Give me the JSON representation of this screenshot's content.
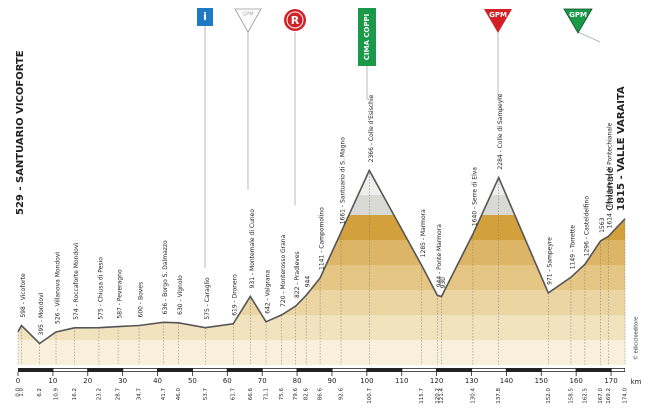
{
  "chart_data": {
    "type": "area",
    "x": [
      0,
      1.0,
      6.2,
      10.9,
      16.2,
      23.2,
      28.7,
      34.7,
      41.7,
      46.0,
      53.7,
      61.7,
      66.6,
      71.1,
      75.6,
      79.6,
      82.6,
      86.6,
      92.6,
      100.7,
      115.7,
      120.2,
      121.4,
      130.4,
      137.8,
      152.0,
      158.5,
      162.5,
      167.0,
      169.2,
      174.0
    ],
    "x_labels": [
      "0.0",
      "1.0",
      "6.2",
      "10.9",
      "16.2",
      "23.2",
      "28.7",
      "34.7",
      "41.7",
      "46.0",
      "53.7",
      "61.7",
      "66.6",
      "71.1",
      "75.6",
      "79.6",
      "82.6",
      "86.6",
      "92.6",
      "100.7",
      "115.7",
      "120.2",
      "121.4",
      "130.4",
      "137.8",
      "152.0",
      "158.5",
      "162.5",
      "167.0",
      "169.2",
      "174.0"
    ],
    "values": [
      529,
      598,
      395,
      526,
      574,
      575,
      587,
      600,
      636,
      630,
      575,
      619,
      931,
      642,
      720,
      822,
      944,
      1141,
      1661,
      2366,
      1285,
      944,
      930,
      1640,
      2284,
      971,
      1149,
      1296,
      1563,
      1614,
      1815
    ],
    "value_labels": [
      "529 - SANTUARIO VICOFORTE",
      "598 - Vicoforte",
      "395 - Mondovì",
      "526 - Villanova Mondovì",
      "574 - Roccaforte Mondovì",
      "575 - Chiusa di Pesio",
      "587 - Peveragno",
      "600 - Boves",
      "636 - Borgo S. Dalmazzo",
      "630 - Vignolo",
      "575 - Caraglio",
      "619 - Dronero",
      "931 - Montemale di Cuneo",
      "642 - Valgrana",
      "720 - Monterosso Grana",
      "822 - Pradleves",
      "944",
      "1141 - Campomolino",
      "1661 - Santuario di S. Magno",
      "2366 - Colle d'Esischie",
      "1285 - Marmora",
      "944 - Ponte Marmora",
      "930",
      "1640 - Serre di Elva",
      "2284 - Colle di Sampeyre",
      "971 - Sampeyre",
      "1149 - Torrette",
      "1296 - Casteldelfino",
      "1563",
      "1614 - Maddalena di Pontechianale",
      "1815 - VALLE VARAITA"
    ],
    "finish_town": "Chianale",
    "color": "#555555",
    "xlim": [
      0,
      174
    ],
    "xticks": [
      0,
      10,
      20,
      30,
      40,
      50,
      60,
      70,
      80,
      90,
      100,
      110,
      120,
      130,
      140,
      150,
      160,
      170
    ],
    "x_unit": "km",
    "ylim": [
      150,
      3850
    ],
    "markers": {
      "info": "i",
      "gpm_white": "GPM",
      "sprint": "R",
      "cima": "CIMA COPPI",
      "gpm_red": "GPM",
      "gpm_green": "GPM"
    },
    "credit": "© edicicloeditore"
  }
}
